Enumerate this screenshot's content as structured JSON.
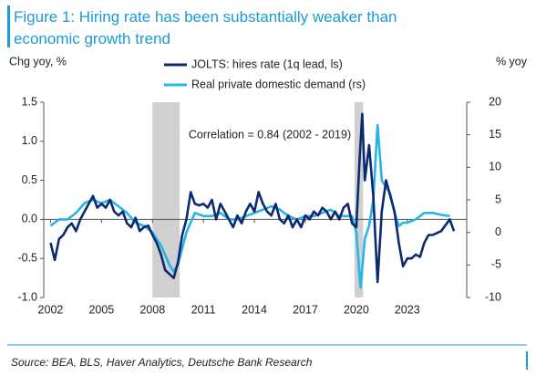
{
  "chart_data": {
    "type": "line",
    "title": [
      "Figure 1: Hiring rate has been substantially weaker than",
      "economic growth trend"
    ],
    "y_label": "Chg yoy, %",
    "y2_label": "% yoy",
    "annotation": "Correlation = 0.84 (2002 - 2019)",
    "source": "Source: BEA, BLS, Haver Analytics, Deutsche Bank Research",
    "xlim": [
      2001.6,
      2026.5
    ],
    "xticks": [
      2002,
      2005,
      2008,
      2011,
      2014,
      2017,
      2020,
      2023
    ],
    "ylim": [
      -1.0,
      1.5
    ],
    "yticks": [
      {
        "value": 1.5,
        "label": "1.5"
      },
      {
        "value": 1.0,
        "label": "1.0"
      },
      {
        "value": 0.5,
        "label": "0.5"
      },
      {
        "value": 0.0,
        "label": "0.0"
      },
      {
        "value": -0.5,
        "label": "-0.5"
      },
      {
        "value": -1.0,
        "label": "-1.0"
      }
    ],
    "y2lim": [
      -10,
      20
    ],
    "y2ticks": [
      20,
      15,
      10,
      5,
      0,
      -5,
      -10
    ],
    "shaded_periods": [
      [
        2008.0,
        2009.6
      ],
      [
        2019.9,
        2020.4
      ]
    ],
    "shade_color": "#d0d0d0",
    "series": [
      {
        "name": "JOLTS: hires rate (1q lead, ls)",
        "color": "#0b2a6f",
        "axis": "y",
        "x": [
          2002.0,
          2002.25,
          2002.5,
          2002.75,
          2003.0,
          2003.25,
          2003.5,
          2003.75,
          2004.0,
          2004.25,
          2004.5,
          2004.75,
          2005.0,
          2005.25,
          2005.5,
          2005.75,
          2006.0,
          2006.25,
          2006.5,
          2006.75,
          2007.0,
          2007.25,
          2007.5,
          2007.75,
          2008.0,
          2008.25,
          2008.5,
          2008.75,
          2009.0,
          2009.25,
          2009.5,
          2009.75,
          2010.0,
          2010.25,
          2010.5,
          2010.75,
          2011.0,
          2011.25,
          2011.5,
          2011.75,
          2012.0,
          2012.25,
          2012.5,
          2012.75,
          2013.0,
          2013.25,
          2013.5,
          2013.75,
          2014.0,
          2014.25,
          2014.5,
          2014.75,
          2015.0,
          2015.25,
          2015.5,
          2015.75,
          2016.0,
          2016.25,
          2016.5,
          2016.75,
          2017.0,
          2017.25,
          2017.5,
          2017.75,
          2018.0,
          2018.25,
          2018.5,
          2018.75,
          2019.0,
          2019.25,
          2019.5,
          2019.75,
          2020.0,
          2020.2,
          2020.35,
          2020.5,
          2020.75,
          2021.0,
          2021.25,
          2021.5,
          2021.75,
          2022.0,
          2022.25,
          2022.5,
          2022.75,
          2023.0,
          2023.25,
          2023.5,
          2023.75,
          2024.0,
          2024.25,
          2024.5,
          2025.0,
          2025.5,
          2025.75
        ],
        "values": [
          -0.3,
          -0.52,
          -0.25,
          -0.2,
          -0.1,
          -0.05,
          -0.15,
          0.0,
          0.1,
          0.2,
          0.3,
          0.15,
          0.2,
          0.15,
          0.25,
          0.1,
          0.05,
          0.1,
          -0.05,
          -0.1,
          0.02,
          -0.15,
          -0.1,
          -0.08,
          -0.2,
          -0.3,
          -0.45,
          -0.65,
          -0.7,
          -0.75,
          -0.55,
          -0.2,
          0.0,
          0.35,
          0.2,
          0.18,
          0.2,
          0.15,
          0.25,
          0.0,
          0.2,
          0.1,
          0.0,
          -0.1,
          0.05,
          -0.05,
          0.1,
          0.2,
          0.1,
          0.35,
          0.2,
          0.1,
          0.05,
          0.2,
          0.0,
          -0.05,
          0.05,
          -0.1,
          0.0,
          -0.1,
          0.05,
          0.0,
          0.1,
          0.05,
          0.15,
          0.1,
          0.0,
          0.1,
          0.0,
          0.15,
          0.2,
          -0.05,
          -0.1,
          0.8,
          1.35,
          0.5,
          0.95,
          0.3,
          -0.8,
          0.1,
          0.5,
          0.3,
          0.1,
          -0.3,
          -0.6,
          -0.5,
          -0.5,
          -0.45,
          -0.48,
          -0.3,
          -0.2,
          -0.2,
          -0.15,
          0.0,
          -0.15
        ]
      },
      {
        "name": "Real private domestic demand (rs)",
        "color": "#28b4e8",
        "axis": "y2",
        "x": [
          2002.0,
          2002.5,
          2003.0,
          2003.5,
          2004.0,
          2004.5,
          2005.0,
          2005.5,
          2006.0,
          2006.5,
          2007.0,
          2007.5,
          2008.0,
          2008.5,
          2009.0,
          2009.25,
          2009.5,
          2010.0,
          2010.5,
          2011.0,
          2011.5,
          2012.0,
          2012.5,
          2013.0,
          2013.5,
          2014.0,
          2014.5,
          2015.0,
          2015.5,
          2016.0,
          2016.5,
          2017.0,
          2017.5,
          2018.0,
          2018.5,
          2019.0,
          2019.5,
          2019.75,
          2020.0,
          2020.25,
          2020.5,
          2020.75,
          2021.0,
          2021.25,
          2021.5,
          2021.75,
          2022.0,
          2022.25,
          2022.5,
          2022.75,
          2023.0,
          2023.5,
          2024.0,
          2024.5,
          2025.0,
          2025.5
        ],
        "values": [
          1,
          2,
          2,
          3,
          4.5,
          5,
          4.5,
          5,
          4,
          3,
          1.5,
          1,
          0,
          -2,
          -5,
          -6,
          -5,
          0,
          3,
          2.5,
          2.5,
          3,
          2,
          2,
          2.5,
          3,
          3.5,
          4,
          3.5,
          2.5,
          2,
          2.5,
          2.5,
          3,
          3.5,
          2.5,
          2.5,
          2.5,
          0,
          -8.5,
          -1,
          1,
          5,
          16.5,
          8,
          7,
          6,
          3,
          1,
          1.5,
          1.5,
          2,
          3,
          3,
          2.7,
          2.5
        ]
      }
    ]
  }
}
